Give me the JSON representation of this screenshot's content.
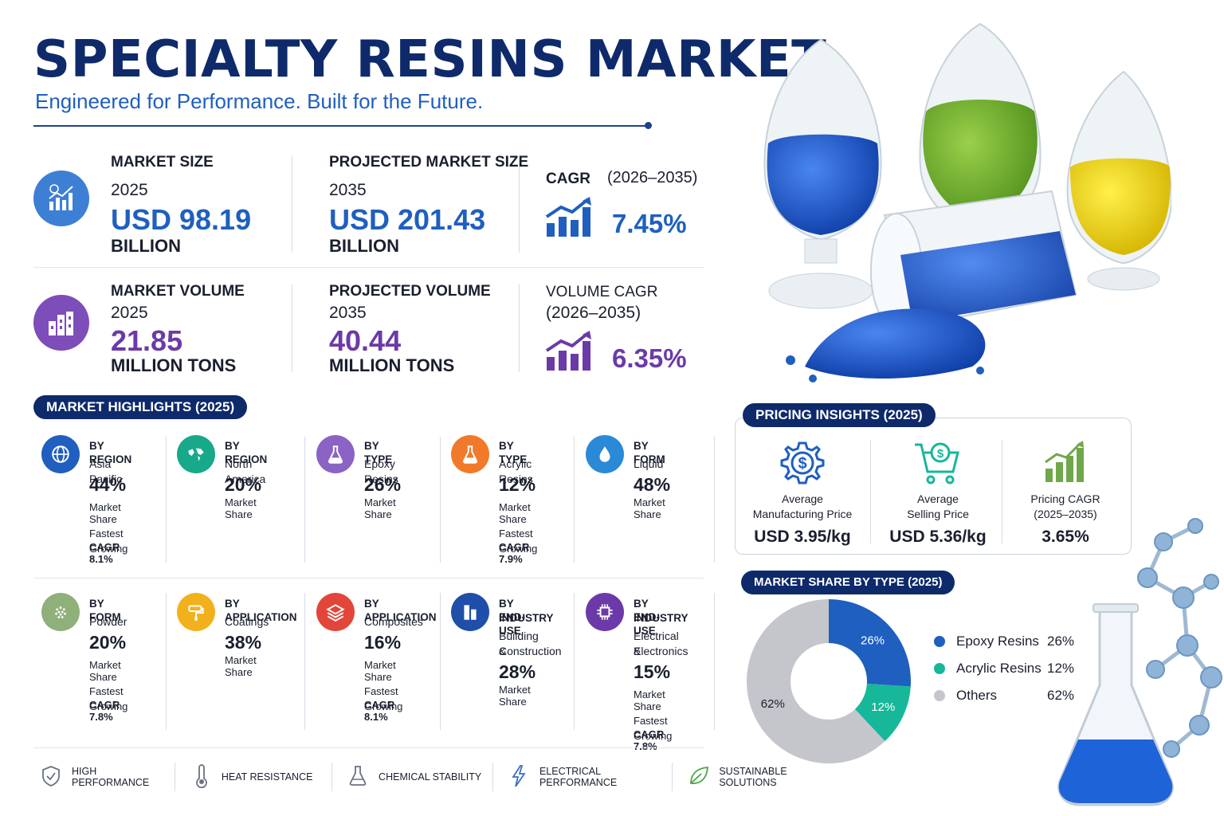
{
  "header": {
    "title": "SPECIALTY RESINS MARKET",
    "subtitle": "Engineered for Performance. Built for the Future."
  },
  "stats": {
    "market_size": {
      "label": "MARKET SIZE",
      "year": "2025",
      "value": "USD 98.19",
      "unit": "BILLION"
    },
    "projected_size": {
      "label": "PROJECTED MARKET SIZE",
      "year": "2035",
      "value": "USD 201.43",
      "unit": "BILLION"
    },
    "cagr": {
      "label": "CAGR",
      "period": "(2026–2035)",
      "value": "7.45%"
    },
    "market_volume": {
      "label": "MARKET VOLUME",
      "year": "2025",
      "value": "21.85",
      "unit": "MILLION TONS"
    },
    "projected_volume": {
      "label": "PROJECTED VOLUME",
      "year": "2035",
      "value": "40.44",
      "unit": "MILLION TONS"
    },
    "volume_cagr": {
      "label": "VOLUME CAGR",
      "period": "(2026–2035)",
      "value": "6.35%"
    }
  },
  "highlights": {
    "title": "MARKET HIGHLIGHTS (2025)",
    "items": [
      {
        "cat": "BY REGION",
        "seg": "Asia Pacific",
        "pct": "44%",
        "ms": "Market Share",
        "fg": "Fastest Growing",
        "cagr": "CAGR 8.1%",
        "icon": "globe-icon",
        "color": "#1f5fbf"
      },
      {
        "cat": "BY REGION",
        "seg": "North America",
        "pct": "20%",
        "ms": "Market Share",
        "icon": "world-map-icon",
        "color": "#17a98a"
      },
      {
        "cat": "BY TYPE",
        "seg": "Epoxy Resins",
        "pct": "26%",
        "ms": "Market Share",
        "icon": "flask-icon",
        "color": "#8a63c4"
      },
      {
        "cat": "BY TYPE",
        "seg": "Acrylic Resins",
        "pct": "12%",
        "ms": "Market Share",
        "fg": "Fastest Growing",
        "cagr": "CAGR 7.9%",
        "icon": "flask-icon",
        "color": "#f07a2a"
      },
      {
        "cat": "BY FORM",
        "seg": "Liquid",
        "pct": "48%",
        "ms": "Market Share",
        "icon": "droplet-icon",
        "color": "#2b8ad8"
      },
      {
        "cat": "BY FORM",
        "seg": "Powder",
        "pct": "20%",
        "ms": "Market Share",
        "fg": "Fastest Growing",
        "cagr": "CAGR 7.8%",
        "icon": "powder-icon",
        "color": "#8fb07a"
      },
      {
        "cat": "BY APPLICATION",
        "seg": "Coatings",
        "pct": "38%",
        "ms": "Market Share",
        "icon": "paint-roller-icon",
        "color": "#f2b11c"
      },
      {
        "cat": "BY APPLICATION",
        "seg": "Composites",
        "pct": "16%",
        "ms": "Market Share",
        "fg": "Fastest Growing",
        "cagr": "CAGR 8.1%",
        "icon": "layers-icon",
        "color": "#e2453a"
      },
      {
        "cat": "BY END-USE",
        "cat2": "INDUSTRY",
        "seg": "Building &",
        "seg2": "Construction",
        "pct": "28%",
        "ms": "Market Share",
        "icon": "building-icon",
        "color": "#1f4fa8"
      },
      {
        "cat": "BY END-USE",
        "cat2": "INDUSTRY",
        "seg": "Electrical &",
        "seg2": "Electronics",
        "pct": "15%",
        "ms": "Market Share",
        "fg": "Fastest Growing",
        "cagr": "CAGR 7.8%",
        "icon": "chip-icon",
        "color": "#6b3aa8"
      }
    ]
  },
  "features": [
    {
      "label": "HIGH PERFORMANCE",
      "icon": "shield-icon"
    },
    {
      "label": "HEAT RESISTANCE",
      "icon": "thermometer-icon"
    },
    {
      "label": "CHEMICAL STABILITY",
      "icon": "flask-icon"
    },
    {
      "label": "ELECTRICAL PERFORMANCE",
      "icon": "lightning-icon"
    },
    {
      "label": "SUSTAINABLE SOLUTIONS",
      "icon": "leaf-icon"
    }
  ],
  "pricing": {
    "title": "PRICING INSIGHTS (2025)",
    "items": [
      {
        "line1": "Average",
        "line2": "Manufacturing Price",
        "value": "USD 3.95/kg",
        "icon": "gear-dollar-icon"
      },
      {
        "line1": "Average",
        "line2": "Selling Price",
        "value": "USD 5.36/kg",
        "icon": "cart-dollar-icon"
      },
      {
        "line1": "Pricing CAGR",
        "line2": "(2025–2035)",
        "value": "3.65%",
        "icon": "bar-chart-icon"
      }
    ]
  },
  "share": {
    "title": "MARKET SHARE BY TYPE (2025)"
  },
  "colors": {
    "navy": "#0e2a6b",
    "blue": "#1f5fbf",
    "purple": "#6b3aa8",
    "teal": "#17b79a",
    "grey": "#c4c6cb"
  },
  "chart_data": {
    "type": "pie",
    "title": "MARKET SHARE BY TYPE (2025)",
    "categories": [
      "Epoxy Resins",
      "Acrylic Resins",
      "Others"
    ],
    "values": [
      26,
      12,
      62
    ],
    "labels": [
      "26%",
      "12%",
      "62%"
    ],
    "legend_values": [
      "26%",
      "12%",
      "62%"
    ],
    "colors": [
      "#1f5fbf",
      "#17b79a",
      "#c4c6cb"
    ]
  }
}
